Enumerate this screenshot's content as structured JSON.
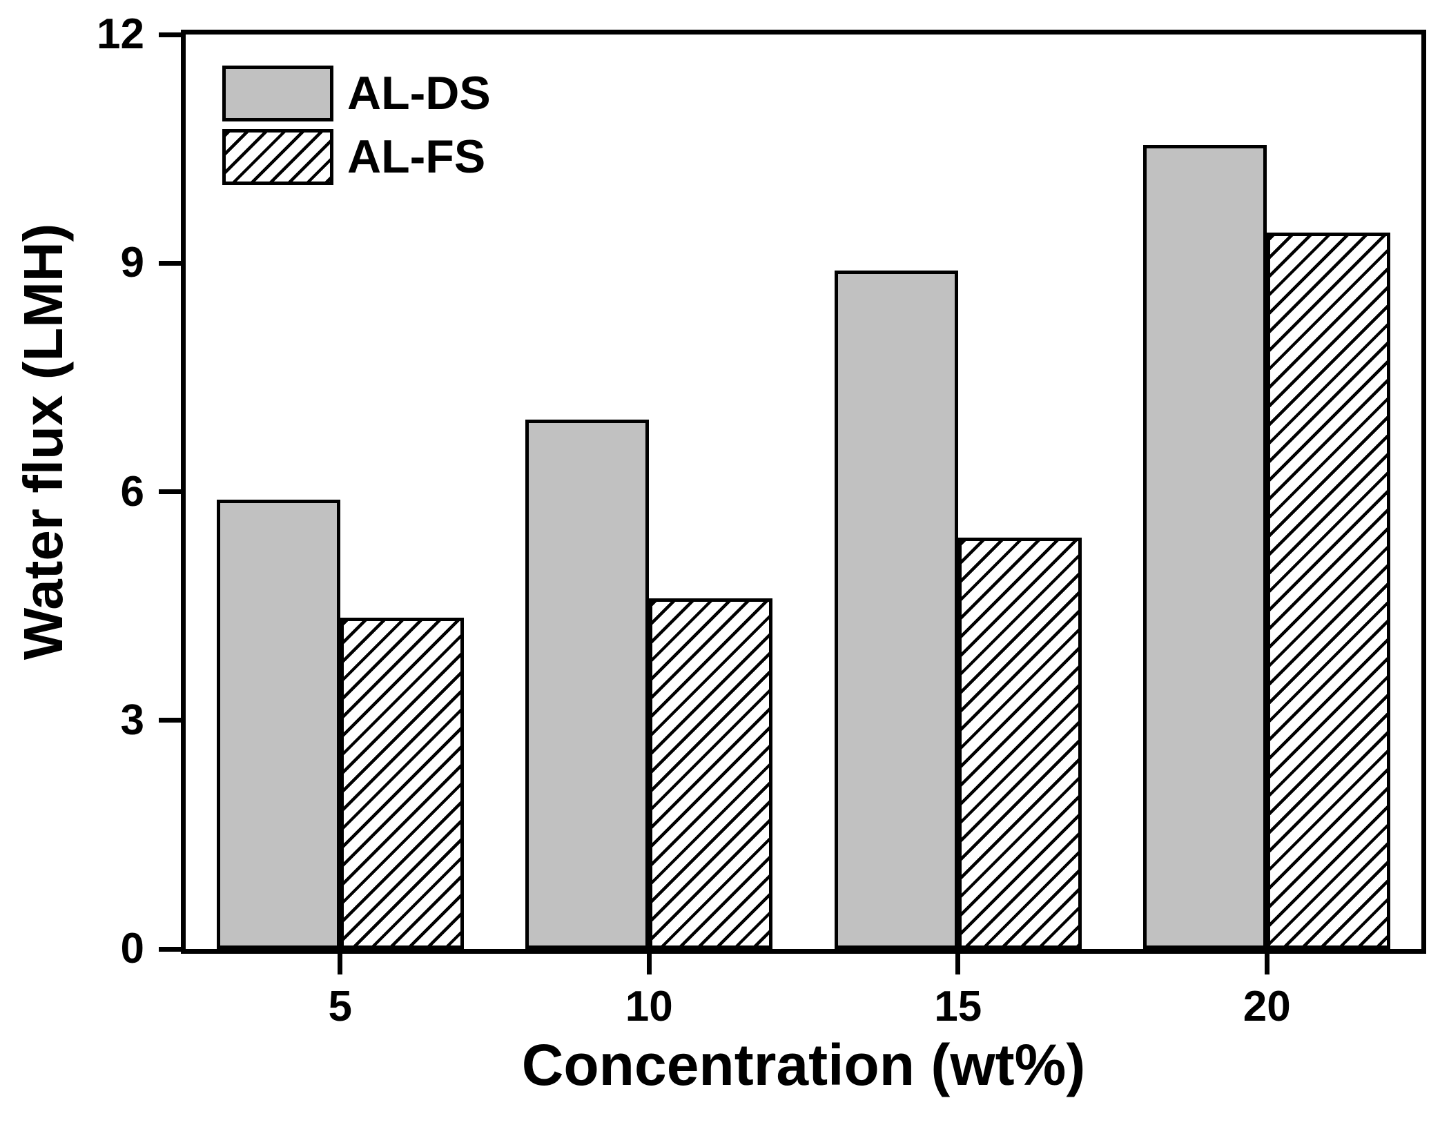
{
  "chart_data": {
    "type": "bar",
    "title": "",
    "xlabel": "Concentration (wt%)",
    "ylabel": "Water flux (LMH)",
    "categories": [
      5,
      10,
      15,
      20
    ],
    "series": [
      {
        "name": "AL-DS",
        "pattern": "solid",
        "fill": "#c1c1c1",
        "values": [
          5.9,
          6.95,
          8.9,
          10.55
        ]
      },
      {
        "name": "AL-FS",
        "pattern": "diagonal-hatch",
        "fill": "#ffffff",
        "values": [
          4.35,
          4.6,
          5.4,
          9.4
        ]
      }
    ],
    "xlim": [
      2.5,
      22.5
    ],
    "ylim": [
      0,
      12
    ],
    "yticks": [
      0,
      3,
      6,
      9,
      12
    ],
    "ytick_labels": [
      "0",
      "3",
      "6",
      "9",
      "12"
    ],
    "xticks": [
      5,
      10,
      15,
      20
    ],
    "xtick_labels": [
      "5",
      "10",
      "15",
      "20"
    ],
    "bar_width_x_units": 2,
    "grid": false,
    "legend_position": "top-left",
    "colors": {
      "axis": "#000000",
      "text": "#000000",
      "background": "#ffffff",
      "solid_bar_fill": "#c1c1c1",
      "hatch_line": "#000000"
    }
  },
  "legend": {
    "items": [
      {
        "label": "AL-DS"
      },
      {
        "label": "AL-FS"
      }
    ]
  }
}
